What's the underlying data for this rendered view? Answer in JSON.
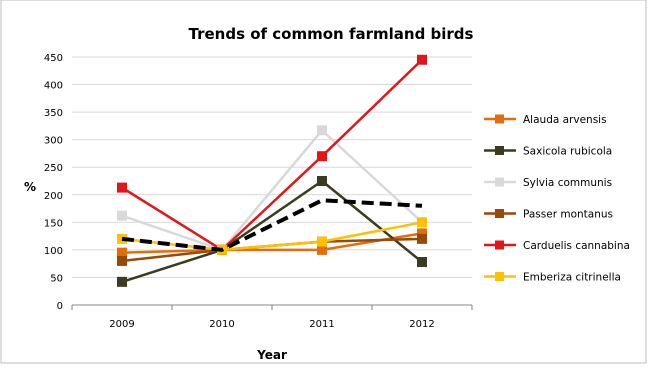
{
  "chart_data": {
    "type": "line",
    "title": "Trends of common farmland birds",
    "xlabel": "Year",
    "ylabel": "%",
    "categories": [
      "2009",
      "2010",
      "2011",
      "2012"
    ],
    "ylim": [
      0,
      450
    ],
    "yticks": [
      "0",
      "50",
      "100",
      "150",
      "200",
      "250",
      "300",
      "350",
      "400",
      "450"
    ],
    "grid": true,
    "legend_position": "right",
    "series": [
      {
        "name": "Alauda arvensis",
        "color": "#e46c0a",
        "values": [
          95,
          100,
          100,
          130
        ]
      },
      {
        "name": "Saxicola rubicola",
        "color": "#3b3b1f",
        "values": [
          42,
          100,
          225,
          78
        ]
      },
      {
        "name": "Sylvia communis",
        "color": "#d9d9d9",
        "values": [
          162,
          100,
          317,
          150
        ]
      },
      {
        "name": "Passer montanus",
        "color": "#984807",
        "values": [
          80,
          100,
          115,
          120
        ]
      },
      {
        "name": "Carduelis cannabina",
        "color": "#e3151a",
        "values": [
          213,
          100,
          270,
          445
        ]
      },
      {
        "name": "Emberiza citrinella",
        "color": "#ffc000",
        "values": [
          120,
          100,
          115,
          150
        ]
      }
    ],
    "trend_line": {
      "color": "#000000",
      "style": "dashed",
      "values": [
        120,
        100,
        190,
        180
      ]
    }
  }
}
